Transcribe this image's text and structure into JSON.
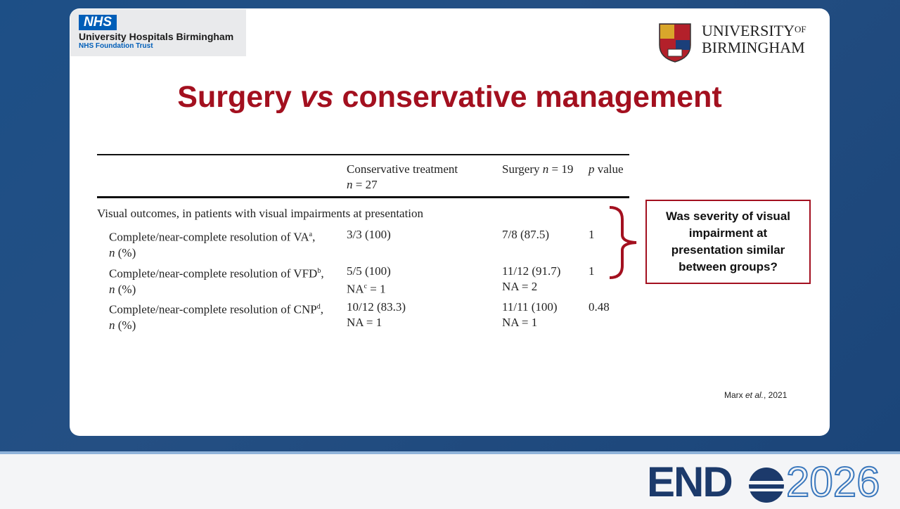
{
  "header": {
    "nhs_badge": "NHS",
    "nhs_org": "University Hospitals Birmingham",
    "nhs_trust": "NHS Foundation Trust",
    "uob_line1": "UNIVERSITY",
    "uob_of": "OF",
    "uob_line2": "BIRMINGHAM"
  },
  "title": {
    "before": "Surgery ",
    "italic": "vs",
    "after": " conservative management"
  },
  "table": {
    "columns": [
      {
        "line1": "Conservative treatment",
        "line2_var": "n",
        "line2_rest": " = 27"
      },
      {
        "text": "Surgery ",
        "var": "n",
        "rest": " = 19"
      },
      {
        "var": "p",
        "rest": " value"
      }
    ],
    "section": "Visual outcomes, in patients with visual impairments at presentation",
    "rows": [
      {
        "label": "Complete/near-complete resolution of VA",
        "sup": "a",
        "tail": ",",
        "var": "n",
        "rest": " (%)",
        "cells": [
          {
            "line1": "3/3 (100)"
          },
          {
            "line1": "7/8 (87.5)"
          },
          {
            "line1": "1"
          }
        ]
      },
      {
        "label": "Complete/near-complete resolution of VFD",
        "sup": "b",
        "tail": ",",
        "var": "n",
        "rest": " (%)",
        "cells": [
          {
            "line1": "5/5 (100)",
            "line2": "NA",
            "line2_sup": "c",
            "line2_rest": " = 1"
          },
          {
            "line1": "11/12 (91.7)",
            "line2": "NA = 2"
          },
          {
            "line1": "1"
          }
        ]
      },
      {
        "label": "Complete/near-complete resolution of CNP",
        "sup": "d",
        "tail": ",",
        "var": "n",
        "rest": " (%)",
        "cells": [
          {
            "line1": "10/12 (83.3)",
            "line2": "NA = 1"
          },
          {
            "line1": "11/11 (100)",
            "line2": "NA = 1"
          },
          {
            "line1": "0.48"
          }
        ]
      }
    ]
  },
  "callout": "Was severity of visual impairment at presentation similar between groups?",
  "citation": {
    "author": "Marx ",
    "etal": "et al.",
    "year": ", 2021"
  },
  "footer": {
    "brand": "END",
    "year": "2026"
  }
}
